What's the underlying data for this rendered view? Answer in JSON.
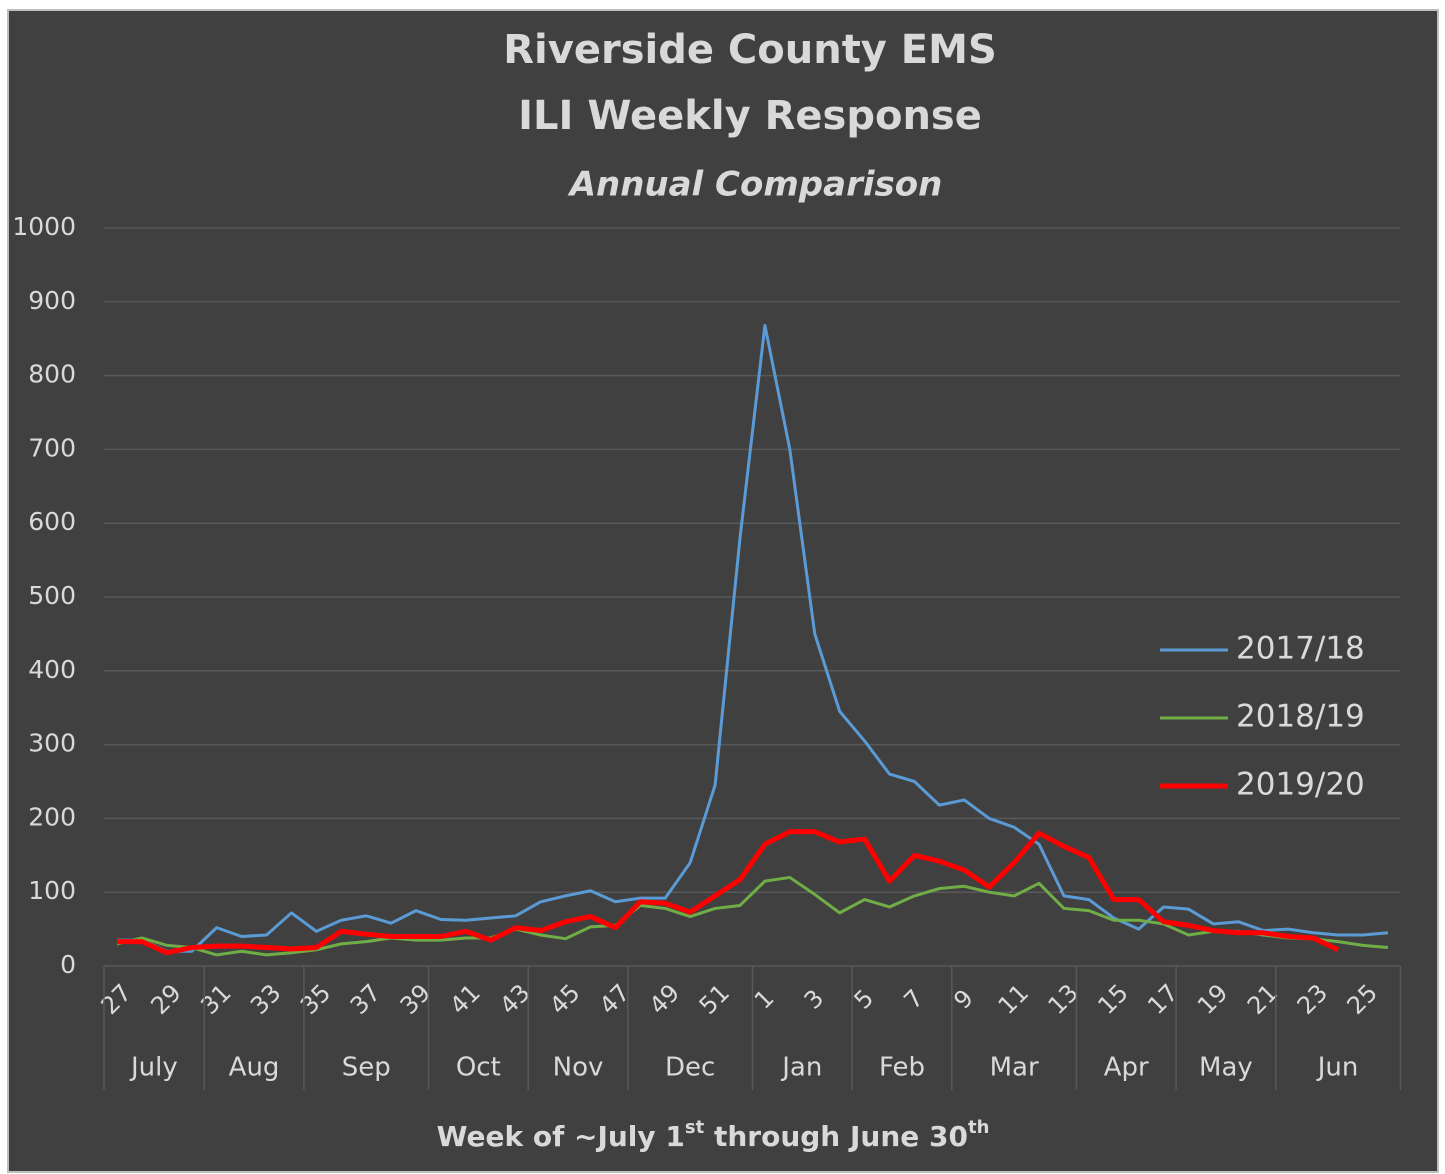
{
  "chart_data": {
    "type": "line",
    "title": [
      "Riverside County EMS",
      "ILI Weekly Response"
    ],
    "subtitle": "Annual Comparison",
    "x_label_parts": [
      {
        "text": "Week of ~July 1"
      },
      {
        "text": "st",
        "sup": true
      },
      {
        "text": " through June 30"
      },
      {
        "text": "th",
        "sup": true
      }
    ],
    "categories": [
      "27",
      null,
      "29",
      null,
      "31",
      null,
      "33",
      null,
      "35",
      null,
      "37",
      null,
      "39",
      null,
      "41",
      null,
      "43",
      null,
      "45",
      null,
      "47",
      null,
      "49",
      null,
      "51",
      null,
      "1",
      null,
      "3",
      null,
      "5",
      null,
      "7",
      null,
      "9",
      null,
      "11",
      null,
      "13",
      null,
      "15",
      null,
      "17",
      null,
      "19",
      null,
      "21",
      null,
      "23",
      null,
      "25",
      null
    ],
    "groups": [
      {
        "label": "July",
        "count": 4
      },
      {
        "label": "Aug",
        "count": 4
      },
      {
        "label": "Sep",
        "count": 5
      },
      {
        "label": "Oct",
        "count": 4
      },
      {
        "label": "Nov",
        "count": 4
      },
      {
        "label": "Dec",
        "count": 5
      },
      {
        "label": "Jan",
        "count": 4
      },
      {
        "label": "Feb",
        "count": 4
      },
      {
        "label": "Mar",
        "count": 5
      },
      {
        "label": "Apr",
        "count": 4
      },
      {
        "label": "May",
        "count": 4
      },
      {
        "label": "Jun",
        "count": 5
      }
    ],
    "ylim": [
      0,
      1000
    ],
    "yticks": [
      0,
      100,
      200,
      300,
      400,
      500,
      600,
      700,
      800,
      900,
      1000
    ],
    "grid": true,
    "legend": "right",
    "series": [
      {
        "name": "2017/18",
        "color": "#5b9bd5",
        "line_width": 3,
        "values": [
          35,
          35,
          20,
          20,
          52,
          40,
          42,
          72,
          47,
          62,
          68,
          58,
          75,
          63,
          62,
          65,
          68,
          87,
          95,
          102,
          87,
          92,
          92,
          140,
          245,
          580,
          868,
          700,
          450,
          345,
          305,
          260,
          250,
          218,
          225,
          200,
          188,
          165,
          95,
          90,
          65,
          50,
          80,
          77,
          57,
          60,
          48,
          50,
          45,
          42,
          42,
          45
        ]
      },
      {
        "name": "2018/19",
        "color": "#70ad47",
        "line_width": 3,
        "values": [
          30,
          38,
          28,
          25,
          15,
          20,
          15,
          18,
          22,
          30,
          33,
          38,
          35,
          35,
          38,
          38,
          50,
          42,
          37,
          53,
          55,
          82,
          78,
          67,
          78,
          82,
          115,
          120,
          97,
          72,
          90,
          80,
          95,
          105,
          108,
          100,
          95,
          112,
          78,
          75,
          62,
          62,
          57,
          42,
          47,
          47,
          42,
          38,
          37,
          33,
          28,
          25
        ]
      },
      {
        "name": "2019/20",
        "color": "#ff0000",
        "line_width": 5,
        "values": [
          33,
          33,
          18,
          25,
          27,
          27,
          25,
          23,
          25,
          47,
          43,
          40,
          40,
          40,
          47,
          35,
          52,
          48,
          60,
          67,
          52,
          87,
          85,
          73,
          95,
          117,
          165,
          182,
          182,
          168,
          172,
          115,
          150,
          142,
          130,
          107,
          140,
          180,
          162,
          147,
          90,
          90,
          60,
          55,
          48,
          45,
          45,
          40,
          38,
          22,
          null,
          null
        ]
      }
    ]
  }
}
